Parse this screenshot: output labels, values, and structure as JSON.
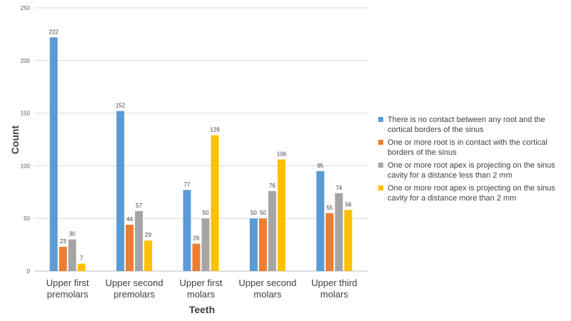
{
  "chart_data": {
    "type": "bar",
    "title": "",
    "xlabel": "Teeth",
    "ylabel": "Count",
    "ylim": [
      0,
      250
    ],
    "yticks": [
      0,
      50,
      100,
      150,
      200,
      250
    ],
    "grid": true,
    "legend_position": "right",
    "categories": [
      [
        "Upper first",
        "premolars"
      ],
      [
        "Upper second",
        "premolars"
      ],
      [
        "Upper first",
        "molars"
      ],
      [
        "Upper second",
        "molars"
      ],
      [
        "Upper third",
        "molars"
      ]
    ],
    "series": [
      {
        "name": "There is no contact between any root and the cortical borders of the sinus",
        "color": "#5B9BD5",
        "values": [
          222,
          152,
          77,
          50,
          95
        ]
      },
      {
        "name": "One or more root is in contact with the cortical borders of the sinus",
        "color": "#ED7D31",
        "values": [
          23,
          44,
          26,
          50,
          55
        ]
      },
      {
        "name": "One or more root apex is projecting on the sinus cavity for a distance less than 2 mm",
        "color": "#A5A5A5",
        "values": [
          30,
          57,
          50,
          76,
          74
        ]
      },
      {
        "name": "One or more root apex is projecting on the sinus cavity for a distance more than 2 mm",
        "color": "#FFC000",
        "values": [
          7,
          29,
          129,
          106,
          58
        ]
      }
    ]
  }
}
